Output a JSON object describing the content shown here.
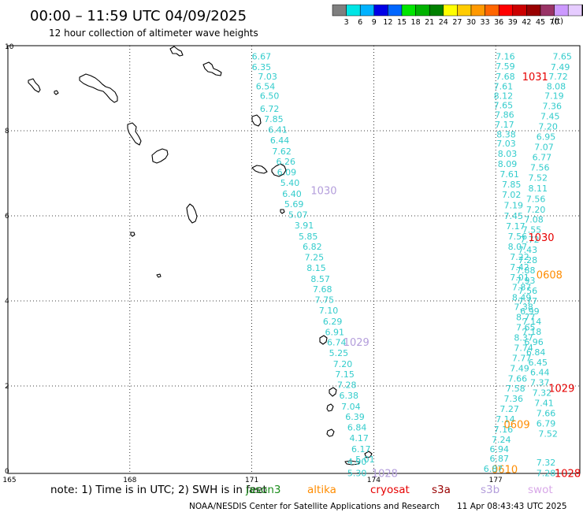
{
  "header": {
    "title": "00:00 – 11:59 UTC 04/09/2025",
    "subtitle": "12 hour collection of altimeter wave heights"
  },
  "color_scale": {
    "unit": "(ft)",
    "colors": [
      "#7f7f7f",
      "#00e5e5",
      "#00b2ff",
      "#0000e6",
      "#0066ff",
      "#00e600",
      "#00b200",
      "#008000",
      "#ffff00",
      "#ffcc00",
      "#ff9900",
      "#ff6600",
      "#ff0000",
      "#cc0000",
      "#990000",
      "#993366",
      "#cc99ff",
      "#e6ccff",
      "#000000"
    ],
    "labels": [
      "3",
      "6",
      "9",
      "12",
      "15",
      "18",
      "21",
      "24",
      "27",
      "30",
      "33",
      "36",
      "39",
      "42",
      "45",
      "70"
    ]
  },
  "map": {
    "x_ticks": [
      "165",
      "168",
      "171",
      "174",
      "177"
    ],
    "y_ticks": [
      "10",
      "8",
      "6",
      "4",
      "2",
      "0"
    ]
  },
  "tracks": [
    {
      "color": "#33cccc",
      "lon": [
        171.0,
        171.0,
        171.15,
        171.1,
        171.2,
        171.2,
        171.3,
        171.4,
        171.45,
        171.5,
        171.6,
        171.62,
        171.7,
        171.75,
        171.8,
        171.9,
        172.05,
        172.15,
        172.25,
        172.3,
        172.35,
        172.45,
        172.5,
        172.55,
        172.65,
        172.75,
        172.8,
        172.85,
        172.9,
        173.0,
        173.05,
        173.1,
        173.15,
        173.2,
        173.3,
        173.35,
        173.4,
        173.45,
        173.55
      ],
      "lat": [
        9.75,
        9.5,
        9.28,
        9.05,
        8.82,
        8.52,
        8.28,
        8.03,
        7.78,
        7.52,
        7.28,
        7.03,
        6.78,
        6.52,
        6.28,
        6.03,
        5.78,
        5.52,
        5.28,
        5.03,
        4.78,
        4.52,
        4.28,
        4.03,
        3.78,
        3.52,
        3.27,
        3.03,
        2.78,
        2.52,
        2.28,
        2.03,
        1.78,
        1.52,
        1.28,
        1.03,
        0.78,
        0.52,
        0.28
      ],
      "values": [
        "6.67",
        "6.35",
        "7.03",
        "6.54",
        "6.50",
        "6.72",
        "7.85",
        "6.41",
        "6.44",
        "7.62",
        "6.26",
        "6.09",
        "5.40",
        "6.40",
        "5.69",
        "5.07",
        "3.91",
        "5.85",
        "6.82",
        "7.25",
        "8.15",
        "8.57",
        "7.68",
        "7.75",
        "7.10",
        "6.29",
        "6.91",
        "6.74",
        "5.25",
        "7.20",
        "7.15",
        "7.28",
        "6.38",
        "7.04",
        "6.39",
        "6.84",
        "4.17",
        "6.17",
        "5.01"
      ]
    },
    {
      "color": "#33cccc",
      "lon": [
        177.0,
        177.0,
        177.0,
        176.95,
        176.95,
        176.95,
        176.98,
        176.98,
        177.02,
        177.02,
        177.05,
        177.05,
        177.1,
        177.15,
        177.15,
        177.2,
        177.2,
        177.25,
        177.3,
        177.3,
        177.35,
        177.35,
        177.35,
        177.4,
        177.4,
        177.45,
        177.5,
        177.5,
        177.45,
        177.45,
        177.4,
        177.35,
        177.3,
        177.25,
        177.2,
        177.1,
        177.0,
        176.95,
        176.9,
        176.85,
        176.85
      ],
      "lat": [
        9.75,
        9.52,
        9.28,
        9.05,
        8.82,
        8.6,
        8.38,
        8.15,
        7.92,
        7.7,
        7.46,
        7.22,
        6.98,
        6.74,
        6.5,
        6.25,
        6.0,
        5.76,
        5.52,
        5.28,
        5.04,
        4.8,
        4.56,
        4.32,
        4.08,
        3.86,
        3.62,
        3.38,
        3.14,
        2.9,
        2.66,
        2.42,
        2.18,
        1.94,
        1.7,
        1.46,
        1.22,
        0.98,
        0.74,
        0.52,
        0.3
      ],
      "values": [
        "7.16",
        "7.59",
        "7.68",
        "7.61",
        "8.12",
        "7.65",
        "7.86",
        "7.17",
        "8.38",
        "7.03",
        "8.03",
        "8.09",
        "7.61",
        "7.85",
        "7.02",
        "7.19",
        "7.45",
        "7.17",
        "7.56",
        "8.07",
        "7.22",
        "7.42",
        "7.01",
        "7.87",
        "8.49",
        "7.38",
        "8.77",
        "7.65",
        "8.37",
        "7.74",
        "7.77",
        "7.49",
        "7.66",
        "7.58",
        "7.36",
        "7.27",
        "7.14",
        "7.16",
        "7.24",
        "6.94",
        "6.87"
      ]
    },
    {
      "color": "#33cccc",
      "lon": [
        178.4,
        178.35,
        178.3,
        178.25,
        178.2,
        178.15,
        178.1,
        178.05,
        178.0,
        177.95,
        177.9,
        177.85,
        177.8,
        177.8,
        177.75,
        177.75,
        177.7,
        177.65,
        177.6,
        177.55,
        177.55,
        177.5,
        177.5,
        177.55,
        177.55,
        177.6,
        177.65,
        177.65,
        177.7,
        177.75,
        177.8,
        177.85,
        177.85,
        177.9,
        177.95,
        178.0,
        178.0,
        178.05
      ],
      "lat": [
        9.75,
        9.5,
        9.28,
        9.05,
        8.82,
        8.58,
        8.34,
        8.1,
        7.86,
        7.62,
        7.38,
        7.14,
        6.9,
        6.65,
        6.4,
        6.15,
        5.92,
        5.68,
        5.44,
        5.2,
        4.96,
        4.72,
        4.48,
        4.24,
        4.0,
        3.76,
        3.52,
        3.28,
        3.04,
        2.8,
        2.56,
        2.32,
        2.08,
        1.84,
        1.6,
        1.36,
        1.12,
        0.88
      ],
      "values": [
        "7.65",
        "7.49",
        "7.72",
        "8.08",
        "7.19",
        "7.36",
        "7.45",
        "7.20",
        "6.95",
        "7.07",
        "6.77",
        "7.56",
        "7.52",
        "8.11",
        "7.56",
        "7.20",
        "7.08",
        "7.55",
        "7.72",
        "7.43",
        "7.28",
        "7.88",
        "7.93",
        "7.56",
        "7.77",
        "6.99",
        "7.14",
        "7.18",
        "6.96",
        "6.84",
        "6.45",
        "6.44",
        "7.37",
        "7.32",
        "7.41",
        "7.66",
        "6.79",
        "7.52"
      ]
    }
  ],
  "pass_labels": [
    {
      "text": "1031",
      "color": "#e60000",
      "lon": 177.65,
      "lat": 9.28
    },
    {
      "text": "0608",
      "color": "#ff8c00",
      "lon": 179.3,
      "lat": 8.2
    },
    {
      "text": "1030",
      "color": "#b39ddb",
      "lon": 172.45,
      "lat": 6.6
    },
    {
      "text": "1030",
      "color": "#e60000",
      "lon": 177.8,
      "lat": 5.5
    },
    {
      "text": "0608",
      "color": "#ff8c00",
      "lon": 178.0,
      "lat": 4.62
    },
    {
      "text": "1029",
      "color": "#b39ddb",
      "lon": 173.25,
      "lat": 3.04
    },
    {
      "text": "1029",
      "color": "#e60000",
      "lon": 178.3,
      "lat": 1.95
    },
    {
      "text": "0609",
      "color": "#ff8c00",
      "lon": 177.2,
      "lat": 1.1
    },
    {
      "text": "1028",
      "color": "#b39ddb",
      "lon": 173.95,
      "lat": -0.05
    },
    {
      "text": "0610",
      "color": "#ff8c00",
      "lon": 176.9,
      "lat": 0.05
    },
    {
      "text": "1028",
      "color": "#e60000",
      "lon": 178.45,
      "lat": -0.05
    }
  ],
  "bottom_values": [
    {
      "text": "4.90",
      "color": "#33cccc",
      "lon": 173.35,
      "lat": 0.22
    },
    {
      "text": "5.30",
      "color": "#33cccc",
      "lon": 173.35,
      "lat": -0.05
    },
    {
      "text": "7.32",
      "color": "#33cccc",
      "lon": 178.0,
      "lat": 0.2
    },
    {
      "text": "7.28",
      "color": "#33cccc",
      "lon": 178.0,
      "lat": -0.05
    },
    {
      "text": "6.87",
      "color": "#33cccc",
      "lon": 176.7,
      "lat": 0.06
    }
  ],
  "footer": {
    "note": "note: 1) Time is in UTC; 2) SWH is in feet",
    "satellites": [
      {
        "name": "jason3",
        "color": "#1a8c1a"
      },
      {
        "name": "altika",
        "color": "#ff8c00"
      },
      {
        "name": "cryosat",
        "color": "#e60000"
      },
      {
        "name": "s3a",
        "color": "#990000"
      },
      {
        "name": "s3b",
        "color": "#b39ddb"
      },
      {
        "name": "swot",
        "color": "#d8a8e8"
      }
    ],
    "credit": "NOAA/NESDIS Center for Satellite Applications and Research",
    "timestamp": "11 Apr 08:43:43 UTC 2025"
  }
}
